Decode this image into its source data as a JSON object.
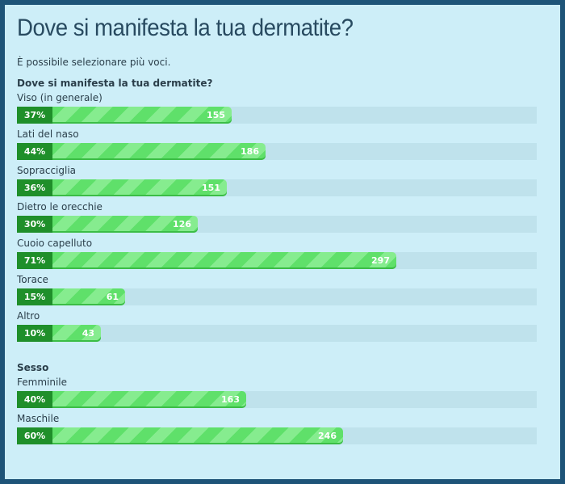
{
  "poll": {
    "title": "Dove si manifesta la tua dermatite?",
    "subtitle": "È possibile selezionare più voci.",
    "questions": [
      {
        "heading": "Dove si manifesta la tua dermatite?",
        "options": [
          {
            "label": "Viso (in generale)",
            "percent": 37,
            "percent_label": "37%",
            "votes": 155
          },
          {
            "label": "Lati del naso",
            "percent": 44,
            "percent_label": "44%",
            "votes": 186
          },
          {
            "label": "Sopracciglia",
            "percent": 36,
            "percent_label": "36%",
            "votes": 151
          },
          {
            "label": "Dietro le orecchie",
            "percent": 30,
            "percent_label": "30%",
            "votes": 126
          },
          {
            "label": "Cuoio capelluto",
            "percent": 71,
            "percent_label": "71%",
            "votes": 297
          },
          {
            "label": "Torace",
            "percent": 15,
            "percent_label": "15%",
            "votes": 61
          },
          {
            "label": "Altro",
            "percent": 10,
            "percent_label": "10%",
            "votes": 43
          }
        ]
      },
      {
        "heading": "Sesso",
        "options": [
          {
            "label": "Femminile",
            "percent": 40,
            "percent_label": "40%",
            "votes": 163
          },
          {
            "label": "Maschile",
            "percent": 60,
            "percent_label": "60%",
            "votes": 246
          }
        ]
      }
    ]
  }
}
